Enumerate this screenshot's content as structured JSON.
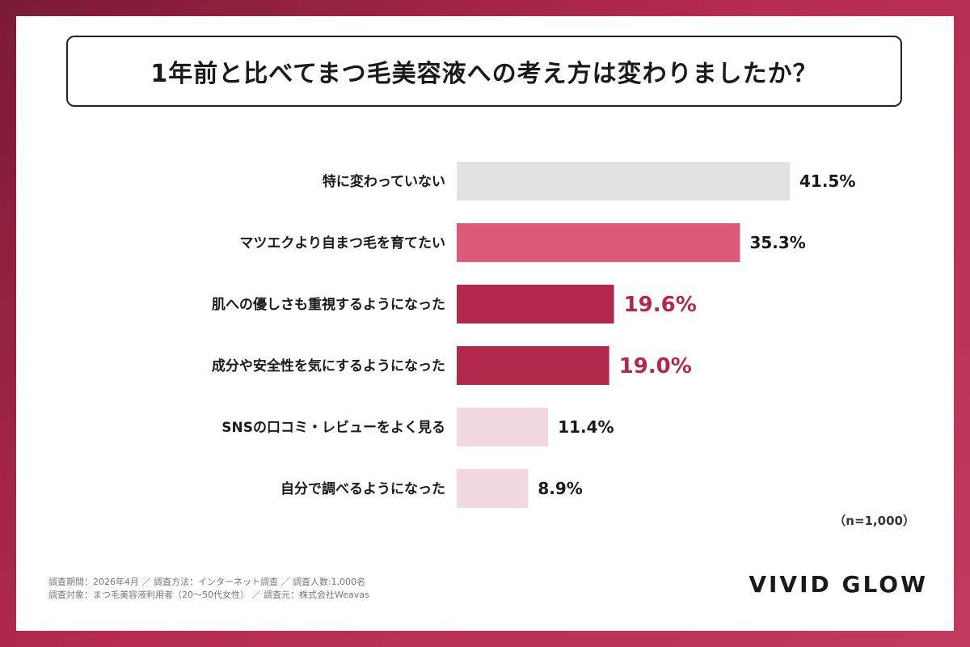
{
  "title": "1年前と比べてまつ毛美容液への考え方は変わりましたか？",
  "chart_data": {
    "type": "bar",
    "orientation": "horizontal",
    "categories": [
      "特に変わっていない",
      "マツエクより自まつ毛を育てたい",
      "肌への優しさも重視するようになった",
      "成分や安全性を気にするようになった",
      "SNSの口コミ・レビューをよく見る",
      "自分で調べるようになった"
    ],
    "values": [
      41.5,
      35.3,
      19.6,
      19.0,
      11.4,
      8.9
    ],
    "value_labels": [
      "41.5%",
      "35.3%",
      "19.6%",
      "19.0%",
      "11.4%",
      "8.9%"
    ],
    "bar_colors": [
      "#e3e1e3",
      "#dc5a78",
      "#b3294b",
      "#b3294b",
      "#f2d8df",
      "#f2d8df"
    ],
    "label_colors": [
      "#1a1a1a",
      "#1a1a1a",
      "#b3294b",
      "#b3294b",
      "#1a1a1a",
      "#1a1a1a"
    ],
    "highlight": [
      false,
      false,
      true,
      true,
      false,
      false
    ],
    "xlim": [
      0,
      41.5
    ],
    "grid": false
  },
  "sample_size": "（n=1,000）",
  "footnote": {
    "line1": "調査期間：2026年4月 ／ 調査方法：インターネット調査 ／ 調査人数:1,000名",
    "line2": "調査対象：まつ毛美容液利用者（20〜50代女性） ／ 調査元：株式会社Weavas"
  },
  "brand": "VIVID GLOW",
  "colors": {
    "background": "#b52a4e",
    "accent": "#b3294b",
    "card": "#ffffff"
  }
}
